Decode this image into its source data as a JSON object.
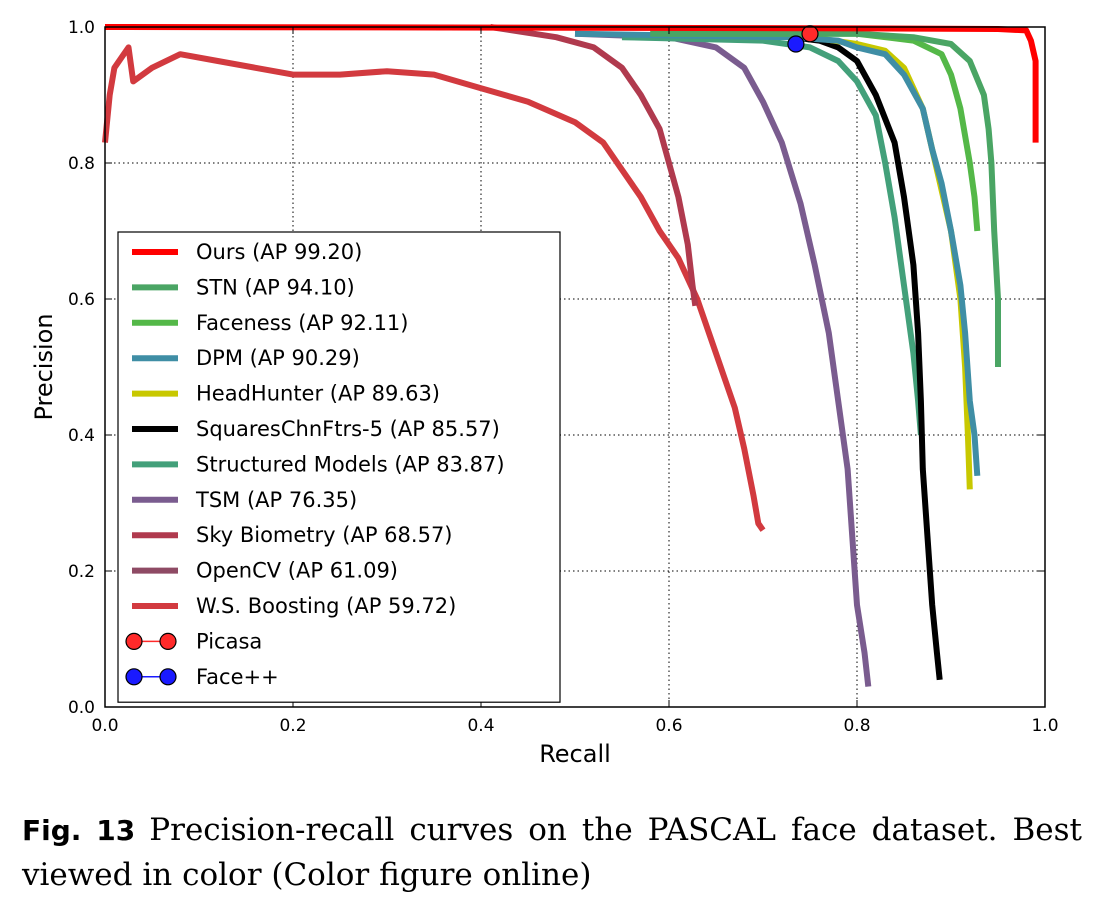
{
  "caption": {
    "number": "Fig. 13",
    "text": "Precision-recall curves on the PASCAL face dataset. Best viewed in color (Color figure online)"
  },
  "chart_data": {
    "type": "line",
    "xlabel": "Recall",
    "ylabel": "Precision",
    "xlim": [
      0.0,
      1.0
    ],
    "ylim": [
      0.0,
      1.0
    ],
    "xticks": [
      "0.0",
      "0.2",
      "0.4",
      "0.6",
      "0.8",
      "1.0"
    ],
    "yticks": [
      "0.0",
      "0.2",
      "0.4",
      "0.6",
      "0.8",
      "1.0"
    ],
    "grid": true,
    "legend_position": "lower-left",
    "series": [
      {
        "name": "Ours (AP 99.20)",
        "color": "#ff0000",
        "points": [
          [
            0.0,
            1.0
          ],
          [
            0.5,
            0.999
          ],
          [
            0.8,
            0.998
          ],
          [
            0.95,
            0.997
          ],
          [
            0.98,
            0.995
          ],
          [
            0.985,
            0.98
          ],
          [
            0.99,
            0.95
          ],
          [
            0.99,
            0.83
          ]
        ]
      },
      {
        "name": "STN (AP 94.10)",
        "color": "#4aa564",
        "points": [
          [
            0.58,
            0.99
          ],
          [
            0.8,
            0.99
          ],
          [
            0.86,
            0.985
          ],
          [
            0.9,
            0.975
          ],
          [
            0.92,
            0.95
          ],
          [
            0.935,
            0.9
          ],
          [
            0.94,
            0.85
          ],
          [
            0.943,
            0.8
          ],
          [
            0.946,
            0.7
          ],
          [
            0.95,
            0.6
          ],
          [
            0.95,
            0.5
          ]
        ]
      },
      {
        "name": "Faceness (AP 92.11)",
        "color": "#54b848",
        "points": [
          [
            0.6,
            0.99
          ],
          [
            0.8,
            0.99
          ],
          [
            0.86,
            0.98
          ],
          [
            0.89,
            0.96
          ],
          [
            0.9,
            0.93
          ],
          [
            0.91,
            0.88
          ],
          [
            0.92,
            0.8
          ],
          [
            0.925,
            0.75
          ],
          [
            0.928,
            0.7
          ]
        ]
      },
      {
        "name": "DPM (AP 90.29)",
        "color": "#3f8ea5",
        "points": [
          [
            0.5,
            0.99
          ],
          [
            0.73,
            0.985
          ],
          [
            0.78,
            0.98
          ],
          [
            0.8,
            0.97
          ],
          [
            0.83,
            0.96
          ],
          [
            0.85,
            0.93
          ],
          [
            0.87,
            0.88
          ],
          [
            0.88,
            0.82
          ],
          [
            0.89,
            0.77
          ],
          [
            0.9,
            0.7
          ],
          [
            0.91,
            0.62
          ],
          [
            0.915,
            0.55
          ],
          [
            0.92,
            0.45
          ],
          [
            0.925,
            0.4
          ],
          [
            0.928,
            0.34
          ]
        ]
      },
      {
        "name": "HeadHunter (AP 89.63)",
        "color": "#c8c800",
        "points": [
          [
            0.6,
            0.99
          ],
          [
            0.75,
            0.985
          ],
          [
            0.8,
            0.975
          ],
          [
            0.83,
            0.965
          ],
          [
            0.85,
            0.94
          ],
          [
            0.87,
            0.88
          ],
          [
            0.88,
            0.82
          ],
          [
            0.89,
            0.76
          ],
          [
            0.9,
            0.7
          ],
          [
            0.91,
            0.6
          ],
          [
            0.915,
            0.5
          ],
          [
            0.918,
            0.4
          ],
          [
            0.92,
            0.32
          ]
        ]
      },
      {
        "name": "SquaresChnFtrs-5 (AP 85.57)",
        "color": "#000000",
        "points": [
          [
            0.73,
            0.985
          ],
          [
            0.76,
            0.98
          ],
          [
            0.78,
            0.97
          ],
          [
            0.8,
            0.95
          ],
          [
            0.82,
            0.9
          ],
          [
            0.84,
            0.83
          ],
          [
            0.85,
            0.75
          ],
          [
            0.86,
            0.65
          ],
          [
            0.865,
            0.55
          ],
          [
            0.868,
            0.45
          ],
          [
            0.87,
            0.35
          ],
          [
            0.875,
            0.25
          ],
          [
            0.88,
            0.15
          ],
          [
            0.885,
            0.08
          ],
          [
            0.888,
            0.04
          ]
        ]
      },
      {
        "name": "Structured Models (AP 83.87)",
        "color": "#43a07a",
        "points": [
          [
            0.55,
            0.985
          ],
          [
            0.7,
            0.98
          ],
          [
            0.75,
            0.97
          ],
          [
            0.78,
            0.95
          ],
          [
            0.8,
            0.92
          ],
          [
            0.82,
            0.87
          ],
          [
            0.83,
            0.8
          ],
          [
            0.84,
            0.72
          ],
          [
            0.85,
            0.62
          ],
          [
            0.86,
            0.52
          ],
          [
            0.865,
            0.45
          ],
          [
            0.868,
            0.4
          ]
        ]
      },
      {
        "name": "TSM (AP 76.35)",
        "color": "#7a5c8f",
        "points": [
          [
            0.5,
            0.99
          ],
          [
            0.6,
            0.985
          ],
          [
            0.65,
            0.97
          ],
          [
            0.68,
            0.94
          ],
          [
            0.7,
            0.89
          ],
          [
            0.72,
            0.83
          ],
          [
            0.74,
            0.74
          ],
          [
            0.755,
            0.65
          ],
          [
            0.77,
            0.55
          ],
          [
            0.78,
            0.45
          ],
          [
            0.79,
            0.35
          ],
          [
            0.795,
            0.25
          ],
          [
            0.8,
            0.15
          ],
          [
            0.808,
            0.08
          ],
          [
            0.812,
            0.03
          ]
        ]
      },
      {
        "name": "Sky Biometry (AP 68.57)",
        "color": "#b03a4e",
        "points": [
          [
            0.41,
            1.0
          ],
          [
            0.48,
            0.985
          ],
          [
            0.52,
            0.97
          ],
          [
            0.55,
            0.94
          ],
          [
            0.57,
            0.9
          ],
          [
            0.59,
            0.85
          ],
          [
            0.6,
            0.8
          ],
          [
            0.61,
            0.75
          ],
          [
            0.62,
            0.68
          ],
          [
            0.625,
            0.62
          ],
          [
            0.628,
            0.59
          ]
        ]
      },
      {
        "name": "OpenCV (AP 61.09)",
        "color": "#8e4a64",
        "points": []
      },
      {
        "name": "W.S. Boosting (AP 59.72)",
        "color": "#d23a3f",
        "points": [
          [
            0.0,
            0.83
          ],
          [
            0.005,
            0.9
          ],
          [
            0.01,
            0.94
          ],
          [
            0.02,
            0.96
          ],
          [
            0.025,
            0.97
          ],
          [
            0.03,
            0.92
          ],
          [
            0.05,
            0.94
          ],
          [
            0.08,
            0.96
          ],
          [
            0.12,
            0.95
          ],
          [
            0.16,
            0.94
          ],
          [
            0.2,
            0.93
          ],
          [
            0.25,
            0.93
          ],
          [
            0.3,
            0.935
          ],
          [
            0.35,
            0.93
          ],
          [
            0.4,
            0.91
          ],
          [
            0.45,
            0.89
          ],
          [
            0.5,
            0.86
          ],
          [
            0.53,
            0.83
          ],
          [
            0.55,
            0.79
          ],
          [
            0.57,
            0.75
          ],
          [
            0.59,
            0.7
          ],
          [
            0.61,
            0.66
          ],
          [
            0.63,
            0.6
          ],
          [
            0.65,
            0.52
          ],
          [
            0.67,
            0.44
          ],
          [
            0.68,
            0.38
          ],
          [
            0.69,
            0.31
          ],
          [
            0.695,
            0.27
          ],
          [
            0.7,
            0.26
          ]
        ]
      }
    ],
    "markers": [
      {
        "name": "Picasa",
        "color": "#ff2a2a",
        "x": 0.75,
        "y": 0.99
      },
      {
        "name": "Face++",
        "color": "#1a1aff",
        "x": 0.735,
        "y": 0.975
      }
    ]
  }
}
